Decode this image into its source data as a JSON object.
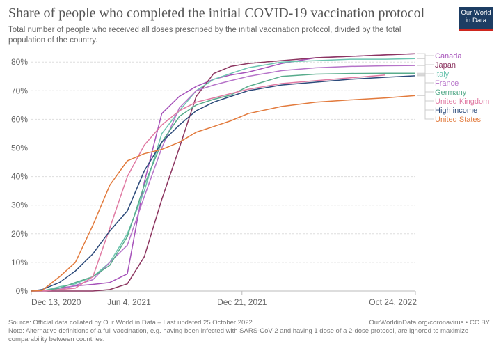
{
  "header": {
    "title": "Share of people who completed the initial COVID-19 vaccination protocol",
    "subtitle": "Total number of people who received all doses prescribed by the initial vaccination protocol, divided by the total population of the country.",
    "logo_text": "Our World in Data"
  },
  "footer": {
    "source": "Source: Official data collated by Our World in Data – Last updated 25 October 2022",
    "url": "OurWorldinData.org/coronavirus • CC BY",
    "note": "Note: Alternative definitions of a full vaccination, e.g. having been infected with SARS-CoV-2 and having 1 dose of a 2-dose protocol, are ignored to maximize comparability between countries."
  },
  "chart_data": {
    "type": "line",
    "title": "Share of people who completed the initial COVID-19 vaccination protocol",
    "xlabel": "",
    "ylabel": "",
    "xlim": [
      "2020-12-13",
      "2022-10-24"
    ],
    "ylim": [
      0,
      85
    ],
    "grid": true,
    "legend_placement": "right",
    "x_ticks": [
      {
        "date": "2020-12-13",
        "label": "Dec 13, 2020"
      },
      {
        "date": "2021-06-04",
        "label": "Jun 4, 2021"
      },
      {
        "date": "2021-12-21",
        "label": "Dec 21, 2021"
      },
      {
        "date": "2022-10-24",
        "label": "Oct 24, 2022"
      }
    ],
    "y_ticks": [
      {
        "value": 0,
        "label": "0%"
      },
      {
        "value": 10,
        "label": "10%"
      },
      {
        "value": 20,
        "label": "20%"
      },
      {
        "value": 30,
        "label": "30%"
      },
      {
        "value": 40,
        "label": "40%"
      },
      {
        "value": 50,
        "label": "50%"
      },
      {
        "value": 60,
        "label": "60%"
      },
      {
        "value": 70,
        "label": "70%"
      },
      {
        "value": 80,
        "label": "80%"
      }
    ],
    "x": [
      "2020-12-13",
      "2021-01-01",
      "2021-02-01",
      "2021-03-01",
      "2021-04-01",
      "2021-05-01",
      "2021-06-01",
      "2021-07-01",
      "2021-08-01",
      "2021-09-01",
      "2021-10-01",
      "2021-11-01",
      "2021-12-01",
      "2022-01-01",
      "2022-03-01",
      "2022-05-01",
      "2022-07-01",
      "2022-09-01",
      "2022-10-24"
    ],
    "series": [
      {
        "name": "Canada",
        "color": "#a652ba",
        "values": [
          0,
          0.1,
          1,
          1.8,
          2.3,
          3,
          6,
          38,
          62,
          68,
          71.5,
          74,
          75.5,
          76.5,
          79.5,
          81.5,
          82,
          82.5,
          82.9
        ]
      },
      {
        "name": "Japan",
        "color": "#8c3560",
        "values": [
          0,
          0,
          0,
          0,
          0,
          0.5,
          2.5,
          12,
          32,
          50,
          68,
          76,
          78.5,
          79.5,
          80.5,
          81.5,
          82,
          82.5,
          82.9
        ]
      },
      {
        "name": "Italy",
        "color": "#6cc5b0",
        "values": [
          0,
          0,
          1.5,
          2.5,
          5,
          10,
          20,
          35,
          55,
          63,
          70,
          74,
          76,
          78,
          80,
          80.5,
          81,
          81,
          81.2
        ]
      },
      {
        "name": "France",
        "color": "#b673c9",
        "values": [
          0,
          0,
          0.5,
          2,
          4,
          10,
          16,
          33,
          50,
          64,
          70,
          72,
          73.5,
          75,
          77,
          78,
          78.5,
          78.7,
          78.8
        ]
      },
      {
        "name": "Germany",
        "color": "#58ac8c",
        "values": [
          0,
          0,
          1,
          3,
          5,
          9,
          19,
          37,
          52,
          61,
          65,
          67,
          68.5,
          71.5,
          75,
          75.8,
          76,
          76.1,
          76.1
        ]
      },
      {
        "name": "United Kingdom",
        "color": "#e07aa3",
        "values": [
          0,
          0,
          0.5,
          1,
          5,
          22,
          40,
          51,
          58,
          63,
          66,
          67.5,
          69,
          70.5,
          72.5,
          73.5,
          74.5,
          75.5,
          null
        ]
      },
      {
        "name": "High income",
        "color": "#2c4a7a",
        "values": [
          0,
          0.5,
          3,
          7,
          13,
          21,
          28,
          42,
          52,
          58,
          63,
          66,
          68,
          70,
          72,
          73,
          74,
          74.7,
          75.2
        ]
      },
      {
        "name": "United States",
        "color": "#e27a3c",
        "values": [
          0,
          0.2,
          5,
          10,
          23,
          37,
          45.5,
          48,
          49.5,
          52,
          55.5,
          57.5,
          59.5,
          62,
          64.5,
          66,
          66.8,
          67.5,
          68.3
        ]
      }
    ]
  }
}
